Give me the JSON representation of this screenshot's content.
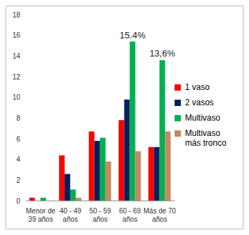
{
  "chart_data": {
    "type": "bar",
    "categories": [
      "Menor de 39 años",
      "40 - 49 años",
      "50 - 59 años",
      "60 - 69 años",
      "Más de 70 años"
    ],
    "series": [
      {
        "name": "1 vaso",
        "color": "#ff0000",
        "values": [
          0.3,
          4.4,
          6.7,
          7.8,
          5.2
        ]
      },
      {
        "name": "2 vasos",
        "color": "#002060",
        "values": [
          0,
          2.6,
          5.8,
          9.8,
          5.2
        ]
      },
      {
        "name": "Multivaso",
        "color": "#00b050",
        "values": [
          0.3,
          1.1,
          6.1,
          15.4,
          13.6
        ],
        "value_labels": [
          null,
          null,
          null,
          "15.4%",
          "13,6%"
        ]
      },
      {
        "name": "Multivaso más tronco",
        "color": "#c4895e",
        "values": [
          0,
          0.3,
          3.8,
          4.8,
          6.7
        ]
      }
    ],
    "ylim": [
      0,
      18
    ],
    "yticks": [
      0,
      2,
      4,
      6,
      8,
      10,
      12,
      14,
      16,
      18
    ],
    "grid": false,
    "legend": "right"
  }
}
